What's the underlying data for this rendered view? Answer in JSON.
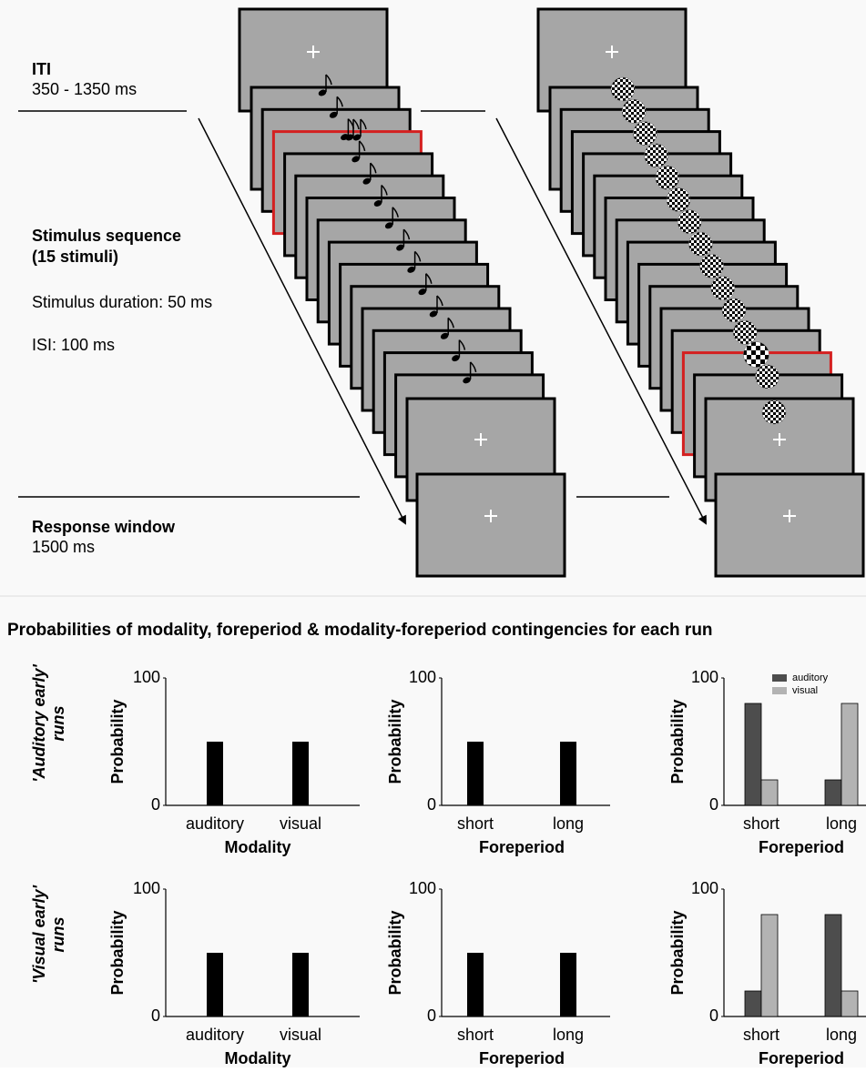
{
  "diagram": {
    "iti": {
      "title": "ITI",
      "duration": "350 - 1350 ms"
    },
    "sequence": {
      "title": [
        "Stimulus sequence",
        "(15 stimuli)"
      ],
      "stimulus_duration": "Stimulus duration: 50 ms",
      "isi": "ISI: 100 ms"
    },
    "response": {
      "title": "Response window",
      "duration": "1500 ms"
    }
  },
  "panel_title": "Probabilities of modality, foreperiod & modality-foreperiod contingencies for each run",
  "row_labels": [
    [
      "'Auditory early'",
      "runs"
    ],
    [
      "'Visual early'",
      "runs"
    ]
  ],
  "chart_data": [
    {
      "type": "bar",
      "ylabel": "Probability",
      "xlabel": "Modality",
      "categories": [
        "auditory",
        "visual"
      ],
      "values": [
        50,
        50
      ],
      "color": "#000000",
      "ylim": [
        0,
        100
      ],
      "yticks": [
        0,
        100
      ]
    },
    {
      "type": "bar",
      "ylabel": "Probability",
      "xlabel": "Foreperiod",
      "categories": [
        "short",
        "long"
      ],
      "values": [
        50,
        50
      ],
      "color": "#000000",
      "ylim": [
        0,
        100
      ],
      "yticks": [
        0,
        100
      ]
    },
    {
      "type": "grouped_bar",
      "ylabel": "Probability",
      "xlabel": "Foreperiod",
      "categories": [
        "short",
        "long"
      ],
      "series": [
        {
          "name": "auditory",
          "color": "#4d4d4d",
          "values": [
            80,
            20
          ]
        },
        {
          "name": "visual",
          "color": "#b3b3b3",
          "values": [
            20,
            80
          ]
        }
      ],
      "ylim": [
        0,
        100
      ],
      "yticks": [
        0,
        100
      ],
      "legend": "upper right"
    },
    {
      "type": "bar",
      "ylabel": "Probability",
      "xlabel": "Modality",
      "categories": [
        "auditory",
        "visual"
      ],
      "values": [
        50,
        50
      ],
      "color": "#000000",
      "ylim": [
        0,
        100
      ],
      "yticks": [
        0,
        100
      ]
    },
    {
      "type": "bar",
      "ylabel": "Probability",
      "xlabel": "Foreperiod",
      "categories": [
        "short",
        "long"
      ],
      "values": [
        50,
        50
      ],
      "color": "#000000",
      "ylim": [
        0,
        100
      ],
      "yticks": [
        0,
        100
      ]
    },
    {
      "type": "grouped_bar",
      "ylabel": "Probability",
      "xlabel": "Foreperiod",
      "categories": [
        "short",
        "long"
      ],
      "series": [
        {
          "color": "#4d4d4d",
          "values": [
            20,
            80
          ]
        },
        {
          "color": "#b3b3b3",
          "values": [
            80,
            20
          ]
        }
      ],
      "ylim": [
        0,
        100
      ],
      "yticks": [
        0,
        100
      ]
    }
  ]
}
